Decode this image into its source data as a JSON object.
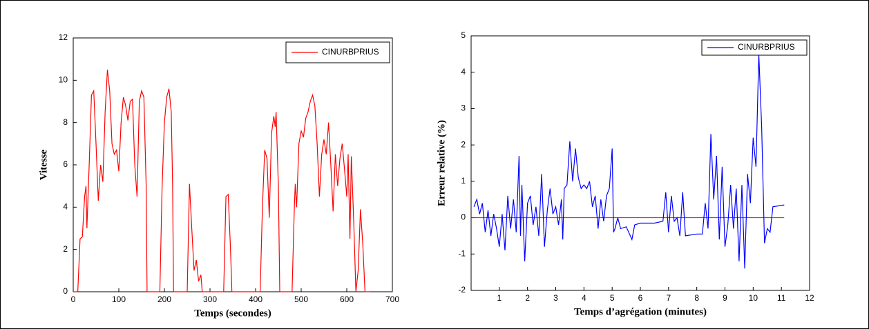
{
  "chart_data": [
    {
      "type": "line",
      "xlabel": "Temps (secondes)",
      "ylabel": "Vitesse",
      "xlim": [
        0,
        700
      ],
      "ylim": [
        0,
        12
      ],
      "xticks": [
        0,
        100,
        200,
        300,
        400,
        500,
        600,
        700
      ],
      "yticks": [
        0,
        2,
        4,
        6,
        8,
        10,
        12
      ],
      "legend": "upper right",
      "x": [
        0,
        10,
        15,
        20,
        25,
        28,
        30,
        35,
        40,
        45,
        50,
        55,
        60,
        65,
        70,
        75,
        80,
        85,
        90,
        95,
        100,
        105,
        110,
        115,
        120,
        125,
        130,
        135,
        140,
        145,
        150,
        155,
        160,
        162,
        190,
        195,
        200,
        205,
        210,
        215,
        218,
        220,
        250,
        255,
        260,
        265,
        270,
        275,
        280,
        283,
        330,
        335,
        340,
        345,
        348,
        410,
        415,
        420,
        425,
        430,
        435,
        440,
        443,
        445,
        450,
        453,
        480,
        485,
        487,
        490,
        495,
        500,
        505,
        510,
        515,
        520,
        525,
        530,
        535,
        540,
        545,
        550,
        555,
        560,
        565,
        570,
        575,
        580,
        585,
        590,
        595,
        600,
        603,
        607,
        610,
        615,
        620,
        625,
        630,
        635,
        640,
        650
      ],
      "series": [
        {
          "name": "CINURBPRIUS",
          "color": "#ff0000",
          "values": [
            0,
            0,
            2.5,
            2.6,
            4.5,
            5,
            3,
            6,
            9.3,
            9.5,
            7,
            4.3,
            6,
            5.2,
            8.5,
            10.5,
            9.5,
            7,
            6.5,
            6.7,
            5.7,
            8,
            9.2,
            8.8,
            8.1,
            9,
            9.1,
            6,
            4.5,
            9,
            9.5,
            9.2,
            5,
            0,
            0,
            5,
            8,
            9.2,
            9.6,
            8.5,
            5,
            0,
            0,
            5.1,
            3,
            1,
            1.5,
            0.5,
            0.8,
            0,
            0,
            4.5,
            4.6,
            2,
            0,
            0,
            4,
            6.7,
            6.3,
            3.5,
            7.5,
            8.3,
            7.8,
            8.5,
            5,
            0,
            0,
            4,
            5.1,
            4,
            7,
            7.6,
            7.3,
            8.2,
            8.5,
            9,
            9.3,
            8.8,
            7,
            4.5,
            6.5,
            7.2,
            6.5,
            8,
            6,
            3.8,
            6.5,
            5,
            6.3,
            7,
            5.8,
            4.5,
            6.5,
            2.5,
            6.4,
            3.5,
            0,
            1,
            3.9,
            2.3,
            0,
            0
          ]
        }
      ]
    },
    {
      "type": "line",
      "xlabel": "Temps d’agrégation (minutes)",
      "ylabel": "Erreur relative (%)",
      "xlim": [
        0,
        12
      ],
      "ylim": [
        -2,
        5
      ],
      "xticks": [
        1,
        2,
        3,
        4,
        5,
        6,
        7,
        8,
        9,
        10,
        11,
        12
      ],
      "yticks": [
        -2,
        -1,
        0,
        1,
        2,
        3,
        4,
        5
      ],
      "legend": "upper right",
      "hline": 0,
      "hline_color": "#ff0000",
      "x": [
        0.1,
        0.2,
        0.3,
        0.4,
        0.5,
        0.6,
        0.7,
        0.8,
        0.9,
        1.0,
        1.1,
        1.2,
        1.3,
        1.4,
        1.5,
        1.6,
        1.7,
        1.75,
        1.8,
        1.9,
        2.0,
        2.1,
        2.2,
        2.3,
        2.4,
        2.5,
        2.6,
        2.7,
        2.8,
        2.9,
        3.0,
        3.1,
        3.2,
        3.25,
        3.3,
        3.4,
        3.5,
        3.6,
        3.7,
        3.8,
        3.9,
        4.0,
        4.1,
        4.2,
        4.3,
        4.4,
        4.5,
        4.6,
        4.7,
        4.8,
        4.9,
        5.0,
        5.05,
        5.1,
        5.2,
        5.3,
        5.5,
        5.7,
        5.8,
        6.0,
        6.5,
        6.8,
        6.9,
        7.0,
        7.1,
        7.2,
        7.3,
        7.4,
        7.5,
        7.6,
        8.0,
        8.2,
        8.3,
        8.4,
        8.5,
        8.6,
        8.7,
        8.8,
        8.9,
        9.0,
        9.1,
        9.2,
        9.3,
        9.4,
        9.5,
        9.6,
        9.7,
        9.8,
        9.9,
        10.0,
        10.1,
        10.2,
        10.3,
        10.4,
        10.5,
        10.6,
        10.7,
        11.1
      ],
      "series": [
        {
          "name": "CINURBPRIUS",
          "color": "#0000ff",
          "values": [
            0.3,
            0.5,
            0.1,
            0.4,
            -0.4,
            0.2,
            -0.5,
            0.1,
            -0.3,
            -0.8,
            0.1,
            -0.9,
            0.6,
            -0.3,
            0.5,
            -0.4,
            1.7,
            -0.5,
            0.9,
            -1.2,
            0.4,
            0.6,
            -0.2,
            0.3,
            -0.5,
            1.2,
            -0.8,
            0.2,
            0.8,
            0.1,
            0.3,
            -0.2,
            0.5,
            -0.6,
            0.8,
            0.9,
            2.1,
            1.0,
            1.9,
            1.1,
            0.8,
            0.9,
            0.8,
            1.0,
            0.3,
            0.6,
            -0.3,
            0.5,
            -0.1,
            0.6,
            0.8,
            1.9,
            -0.4,
            -0.3,
            0.0,
            -0.3,
            -0.25,
            -0.6,
            -0.2,
            -0.15,
            -0.15,
            -0.1,
            0.7,
            -0.4,
            0.6,
            -0.1,
            0.0,
            -0.5,
            0.7,
            -0.5,
            -0.45,
            -0.45,
            0.4,
            -0.3,
            2.3,
            0.5,
            1.7,
            -0.6,
            1.4,
            -0.8,
            -0.2,
            0.9,
            -0.3,
            0.8,
            -1.2,
            0.9,
            -1.4,
            1.2,
            0.4,
            2.2,
            1.4,
            4.5,
            2.5,
            -0.7,
            -0.3,
            -0.4,
            0.3,
            0.35
          ]
        }
      ]
    }
  ]
}
